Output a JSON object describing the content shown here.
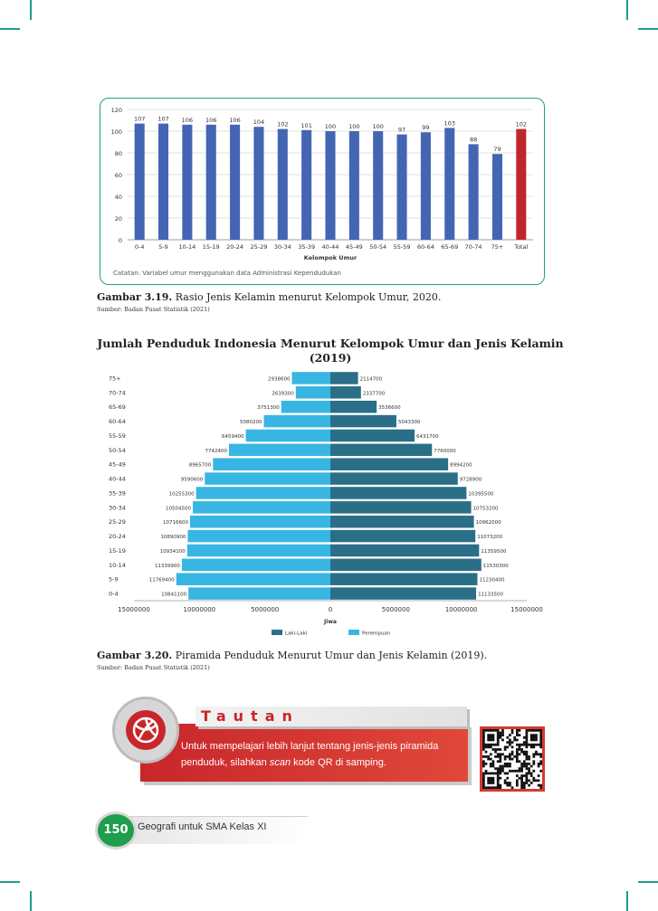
{
  "colors": {
    "accent": "#1e9e8a",
    "bar_blue": "#4465b4",
    "bar_red": "#c0272d",
    "male": "#2b6e87",
    "female": "#38b6e3",
    "tautan_red": "#c8262b",
    "page_green": "#1f9e4c"
  },
  "figure_319": {
    "chart_data": {
      "type": "bar",
      "categories": [
        "0-4",
        "5-9",
        "10-14",
        "15-19",
        "20-24",
        "25-29",
        "30-34",
        "35-39",
        "40-44",
        "45-49",
        "50-54",
        "55-59",
        "60-64",
        "65-69",
        "70-74",
        "75+",
        "Total"
      ],
      "values": [
        107,
        107,
        106,
        106,
        106,
        104,
        102,
        101,
        100,
        100,
        100,
        97,
        99,
        103,
        88,
        79,
        102
      ],
      "value_labels": [
        "107",
        "107",
        "106",
        "106",
        "106",
        "104",
        "102",
        "101",
        "100",
        "100",
        "100",
        "97",
        "99",
        "103",
        "88",
        "79",
        "102"
      ],
      "highlight": "Total",
      "ylim": [
        0,
        120
      ],
      "yticks": [
        "0",
        "20",
        "40",
        "60",
        "80",
        "100",
        "120"
      ],
      "xlabel": "Kelompok Umur",
      "note": "Catatan: Variabel umur menggunakan data Administrasi Kependudukan"
    },
    "caption_label": "Gambar 3.19.",
    "caption_text": " Rasio Jenis Kelamin menurut Kelompok Umur, 2020.",
    "source": "Sumber: Badan Pusat Statistik (2021)"
  },
  "figure_320": {
    "title_line1": "Jumlah Penduduk Indonesia Menurut Kelompok Umur dan Jenis Kelamin",
    "title_line2": "(2019)",
    "chart_data": {
      "type": "bar",
      "orientation": "horizontal",
      "categories": [
        "75+",
        "70-74",
        "65-69",
        "60-64",
        "55-59",
        "50-54",
        "45-49",
        "40-44",
        "35-39",
        "30-34",
        "25-29",
        "20-24",
        "15-19",
        "10-14",
        "5-9",
        "0-4"
      ],
      "series": [
        {
          "name": "Perempuan",
          "values": [
            2938600,
            2639300,
            3751300,
            5080200,
            6459400,
            7742400,
            8965700,
            9590600,
            10255300,
            10504500,
            10716600,
            10890900,
            10934100,
            11339900,
            11769400,
            10841100
          ],
          "labels": [
            "2938600",
            "2639300",
            "3751300",
            "5080200",
            "6459400",
            "7742400",
            "8965700",
            "9590600",
            "10255300",
            "10504500",
            "10716600",
            "10890900",
            "10934100",
            "11339900",
            "11769400",
            "10841100"
          ]
        },
        {
          "name": "Laki-Laki",
          "values": [
            2114700,
            2337700,
            3536600,
            5043300,
            6431700,
            7760000,
            8994200,
            9728900,
            10395500,
            10753200,
            10962000,
            11073200,
            11359500,
            11530300,
            11230400,
            11133500
          ],
          "labels": [
            "2114700",
            "2337700",
            "3536600",
            "5043300",
            "6431700",
            "7760000",
            "8994200",
            "9728900",
            "10395500",
            "10753200",
            "10962000",
            "11073200",
            "11359500",
            "11530300",
            "11230400",
            "11133500"
          ]
        }
      ],
      "xticks": [
        "15000000",
        "10000000",
        "5000000",
        "0",
        "5000000",
        "10000000",
        "15000000"
      ],
      "xlim": [
        -15000000,
        15000000
      ],
      "xlabel": "Jiwa",
      "legend": [
        "Laki-Laki",
        "Perempuan"
      ]
    },
    "caption_label": "Gambar 3.20.",
    "caption_text": " Piramida Penduduk Menurut Umur dan Jenis Kelamin (2019).",
    "source": "Sumber: Badan Pusat Statistik (2021)"
  },
  "tautan": {
    "title": "Tautan",
    "text_before": "Untuk mempelajari lebih lanjut tentang jenis-jenis piramida penduduk,  silahkan ",
    "text_italic": "scan",
    "text_after": " kode QR di samping."
  },
  "footer": {
    "page_number": "150",
    "book_title": "Geografi untuk SMA Kelas XI"
  }
}
